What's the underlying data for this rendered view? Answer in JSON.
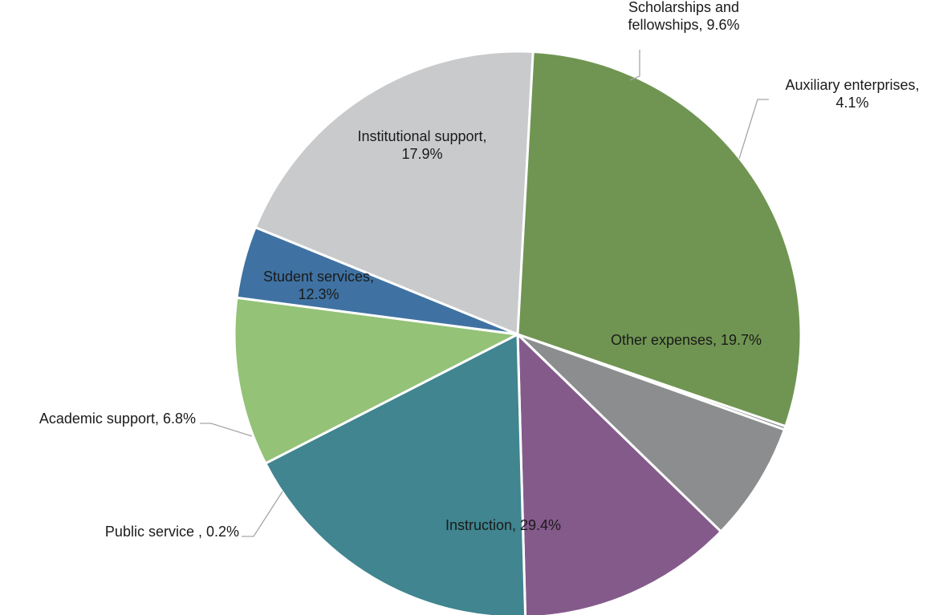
{
  "chart_data": {
    "type": "pie",
    "title": "",
    "slices": [
      {
        "label": "Other expenses",
        "value": 19.7,
        "display": "19.7%",
        "color": "#c9cacc"
      },
      {
        "label": "Instruction",
        "value": 29.4,
        "display": "29.4%",
        "color": "#709552"
      },
      {
        "label": "Public service ",
        "value": 0.2,
        "display": "0.2%",
        "color": "#8c8d8e"
      },
      {
        "label": "Academic support",
        "value": 6.8,
        "display": "6.8%",
        "color": "#8c8d8e"
      },
      {
        "label": "Student services",
        "value": 12.3,
        "display": "12.3%",
        "color": "#845a8b"
      },
      {
        "label": "Institutional support",
        "value": 17.9,
        "display": "17.9%",
        "color": "#40858f"
      },
      {
        "label": "Scholarships and fellowships",
        "value": 9.6,
        "display": "9.6%",
        "color": "#94c277"
      },
      {
        "label": "Auxiliary enterprises",
        "value": 4.1,
        "display": "4.1%",
        "color": "#3f72a2"
      }
    ],
    "labels": [
      {
        "lines": [
          "Other expenses, 19.7%"
        ]
      },
      {
        "lines": [
          "Instruction, 29.4%"
        ]
      },
      {
        "lines": [
          "Public service , 0.2%"
        ]
      },
      {
        "lines": [
          "Academic support, 6.8%"
        ]
      },
      {
        "lines": [
          "Student services,",
          "12.3%"
        ]
      },
      {
        "lines": [
          "Institutional support,",
          "17.9%"
        ]
      },
      {
        "lines": [
          "Scholarships and",
          "fellowships, 9.6%"
        ]
      },
      {
        "lines": [
          "Auxiliary enterprises,",
          "4.1%"
        ]
      }
    ],
    "legend": "none (data labels on slices)"
  }
}
